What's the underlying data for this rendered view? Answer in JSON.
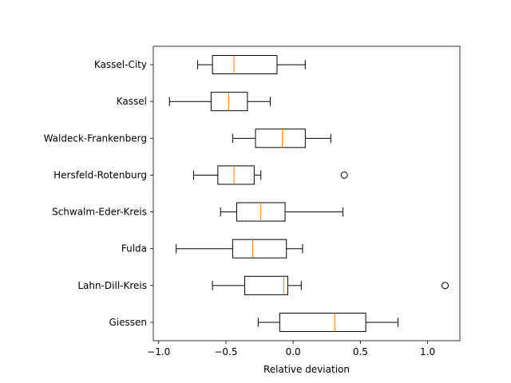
{
  "chart_data": {
    "type": "boxplot",
    "orientation": "horizontal",
    "title": "",
    "xlabel": "Relative deviation",
    "ylabel": "",
    "xlim": [
      -1.04,
      1.24
    ],
    "xticks": [
      {
        "value": -1.0,
        "label": "−1.0"
      },
      {
        "value": -0.5,
        "label": "−0.5"
      },
      {
        "value": 0.0,
        "label": "0.0"
      },
      {
        "value": 0.5,
        "label": "0.5"
      },
      {
        "value": 1.0,
        "label": "1.0"
      }
    ],
    "grid": false,
    "colors": {
      "box": "#000000",
      "median": "#ff7f0e",
      "outlier": "#000000"
    },
    "categories": [
      "Kassel-City",
      "Kassel",
      "Waldeck-Frankenberg",
      "Hersfeld-Rotenburg",
      "Schwalm-Eder-Kreis",
      "Fulda",
      "Lahn-Dill-Kreis",
      "Giessen"
    ],
    "boxes": [
      {
        "label": "Kassel-City",
        "whisker_low": -0.71,
        "q1": -0.6,
        "median": -0.44,
        "q3": -0.12,
        "whisker_high": 0.09,
        "outliers": []
      },
      {
        "label": "Kassel",
        "whisker_low": -0.92,
        "q1": -0.61,
        "median": -0.48,
        "q3": -0.34,
        "whisker_high": -0.17,
        "outliers": []
      },
      {
        "label": "Waldeck-Frankenberg",
        "whisker_low": -0.45,
        "q1": -0.28,
        "median": -0.08,
        "q3": 0.09,
        "whisker_high": 0.28,
        "outliers": []
      },
      {
        "label": "Hersfeld-Rotenburg",
        "whisker_low": -0.74,
        "q1": -0.56,
        "median": -0.44,
        "q3": -0.29,
        "whisker_high": -0.24,
        "outliers": [
          0.38
        ]
      },
      {
        "label": "Schwalm-Eder-Kreis",
        "whisker_low": -0.54,
        "q1": -0.42,
        "median": -0.24,
        "q3": -0.06,
        "whisker_high": 0.37,
        "outliers": []
      },
      {
        "label": "Fulda",
        "whisker_low": -0.87,
        "q1": -0.45,
        "median": -0.3,
        "q3": -0.05,
        "whisker_high": 0.07,
        "outliers": []
      },
      {
        "label": "Lahn-Dill-Kreis",
        "whisker_low": -0.6,
        "q1": -0.36,
        "median": -0.07,
        "q3": -0.04,
        "whisker_high": 0.06,
        "outliers": [
          1.13
        ]
      },
      {
        "label": "Giessen",
        "whisker_low": -0.26,
        "q1": -0.1,
        "median": 0.31,
        "q3": 0.54,
        "whisker_high": 0.78,
        "outliers": []
      }
    ]
  }
}
